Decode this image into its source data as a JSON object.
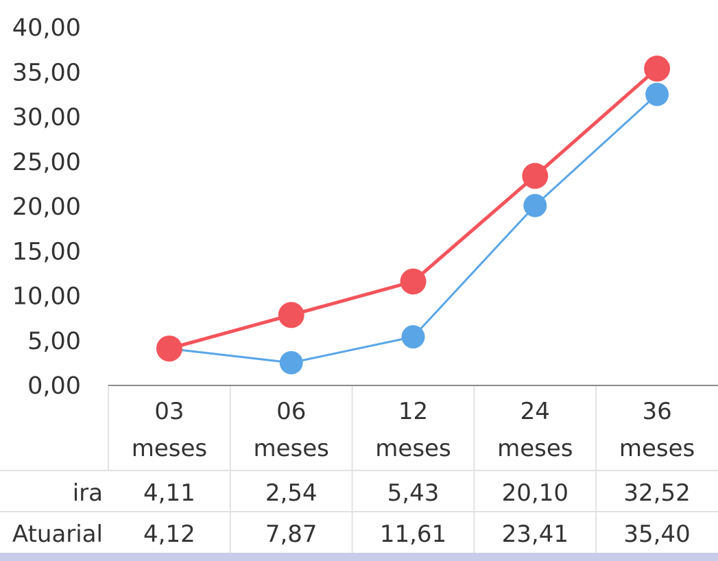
{
  "chart_data": {
    "type": "line",
    "categories": [
      [
        "03",
        "meses"
      ],
      [
        "06",
        "meses"
      ],
      [
        "12",
        "meses"
      ],
      [
        "24",
        "meses"
      ],
      [
        "36",
        "meses"
      ]
    ],
    "ylim": [
      0,
      40
    ],
    "yticks": [
      "0,00",
      "5,00",
      "10,00",
      "15,00",
      "20,00",
      "25,00",
      "30,00",
      "35,00",
      "40,00"
    ],
    "grid": false,
    "series": [
      {
        "name": "ira",
        "color": "#5aa5e6",
        "values": [
          4.11,
          2.54,
          5.43,
          20.1,
          32.52
        ],
        "labels": [
          "4,11",
          "2,54",
          "5,43",
          "20,10",
          "32,52"
        ]
      },
      {
        "name": "Atuarial",
        "color": "#f2545b",
        "values": [
          4.12,
          7.87,
          11.61,
          23.41,
          35.4
        ],
        "labels": [
          "4,12",
          "7,87",
          "11,61",
          "23,41",
          "35,40"
        ]
      }
    ],
    "data_table": true
  }
}
